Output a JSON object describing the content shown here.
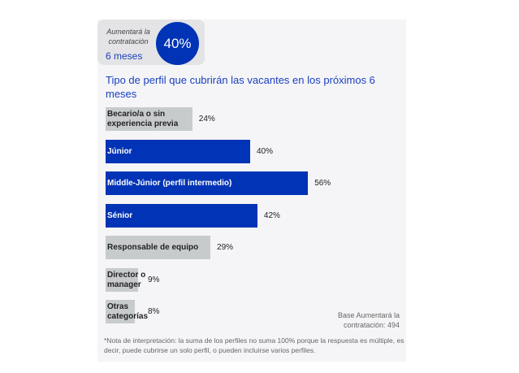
{
  "badge": {
    "label": "Aumentará la contratación",
    "period": "6 meses",
    "value": "40%"
  },
  "chart_data": {
    "type": "bar",
    "orientation": "horizontal",
    "title": "Tipo de perfil que cubrirán las vacantes en los próximos 6 meses",
    "categories": [
      "Becario/a o sin experiencia previa",
      "Júnior",
      "Middle-Júnior (perfil intermedio)",
      "Sénior",
      "Responsable de equipo",
      "Director o manager",
      "Otras categorías"
    ],
    "values": [
      24,
      40,
      56,
      42,
      29,
      9,
      8
    ],
    "value_labels": [
      "24%",
      "40%",
      "56%",
      "42%",
      "29%",
      "9%",
      "8%"
    ],
    "highlight": [
      false,
      true,
      true,
      true,
      false,
      false,
      false
    ],
    "colors": {
      "highlight": "#0033b5",
      "default": "#c8cbcc"
    },
    "xlim": [
      0,
      100
    ]
  },
  "base": "Base Aumentará la contratación: 494",
  "note": "*Nota de interpretación: la suma de los perfiles no suma 100% porque la respuesta es múltiple, es decir, puede cubrirse un solo perfil, o pueden incluirse varios perfiles."
}
